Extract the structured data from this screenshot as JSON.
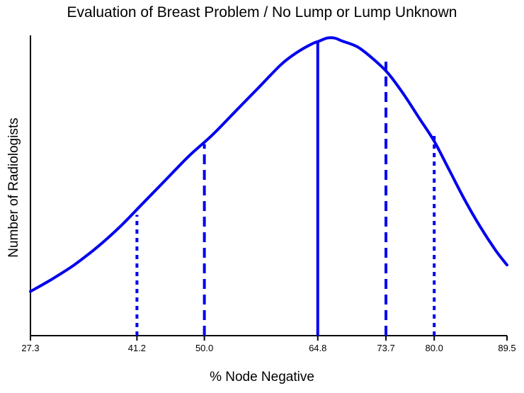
{
  "chart_data": {
    "type": "line",
    "title": "Evaluation of Breast Problem / No Lump or Lump Unknown",
    "xlabel": "% Node Negative",
    "ylabel": "Number of Radiologists",
    "xlim": [
      27.3,
      89.5
    ],
    "ylim": [
      0,
      1
    ],
    "grid": false,
    "ticks": [
      {
        "label": "27.3",
        "value": 27.3
      },
      {
        "label": "41.2",
        "value": 41.2
      },
      {
        "label": "50.0",
        "value": 50.0
      },
      {
        "label": "64.8",
        "value": 64.8
      },
      {
        "label": "73.7",
        "value": 73.7
      },
      {
        "label": "80.0",
        "value": 80.0
      },
      {
        "label": "89.5",
        "value": 89.5
      }
    ],
    "curve": {
      "x": [
        27.3,
        30,
        33,
        36,
        39,
        42,
        45,
        48,
        51,
        54,
        57,
        60,
        62,
        64,
        65,
        66,
        67,
        68,
        70,
        72,
        74,
        76,
        78,
        80,
        82,
        84,
        86,
        88,
        89.5
      ],
      "y": [
        0.15,
        0.19,
        0.24,
        0.3,
        0.37,
        0.45,
        0.53,
        0.61,
        0.68,
        0.76,
        0.84,
        0.92,
        0.96,
        0.99,
        1.0,
        1.01,
        1.01,
        1.0,
        0.98,
        0.94,
        0.89,
        0.82,
        0.74,
        0.66,
        0.56,
        0.46,
        0.37,
        0.29,
        0.24
      ]
    },
    "markers": [
      {
        "x": 41.2,
        "y": 0.41,
        "style": "dotted"
      },
      {
        "x": 50.0,
        "y": 0.65,
        "style": "dashed"
      },
      {
        "x": 64.8,
        "y": 1.0,
        "style": "solid"
      },
      {
        "x": 73.7,
        "y": 0.93,
        "style": "dashed"
      },
      {
        "x": 80.0,
        "y": 0.69,
        "style": "dotted"
      }
    ],
    "color": "#0000ee"
  }
}
